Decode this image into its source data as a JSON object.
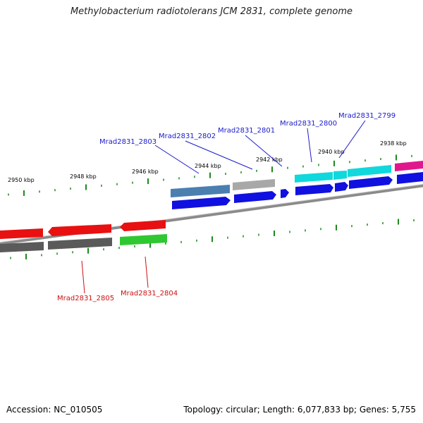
{
  "title": "Methylobacterium radiotolerans JCM 2831, complete genome",
  "accession_text": "Accession: NC_010505",
  "summary_text": "Topology: circular; Length: 6,077,833 bp; Genes: 5,755",
  "axis": {
    "unit": "kbp",
    "tick_labels": [
      "2950 kbp",
      "2948 kbp",
      "2946 kbp",
      "2944 kbp",
      "2942 kbp",
      "2940 kbp",
      "2938 kbp"
    ]
  },
  "forward_labels": [
    "Mrad2831_2803",
    "Mrad2831_2802",
    "Mrad2831_2801",
    "Mrad2831_2800",
    "Mrad2831_2799"
  ],
  "reverse_labels": [
    "Mrad2831_2805",
    "Mrad2831_2804"
  ],
  "colors": {
    "forward_label": "#1a1acc",
    "reverse_label": "#cc1111",
    "cds_blue": "#1010e0",
    "cds_red": "#e81010",
    "steel_blue": "#4a7fb0",
    "light_gray": "#a8a8a8",
    "cyan": "#10d8dc",
    "magenta": "#e0188c",
    "dark_gray": "#5a5a5a",
    "green": "#30c830",
    "tick_green": "#1a8a1a",
    "backbone": "#8a8a8a"
  },
  "icons": {
    "backbone": "genome-backbone-arc",
    "gene_arrow": "gene-arrow-icon"
  }
}
